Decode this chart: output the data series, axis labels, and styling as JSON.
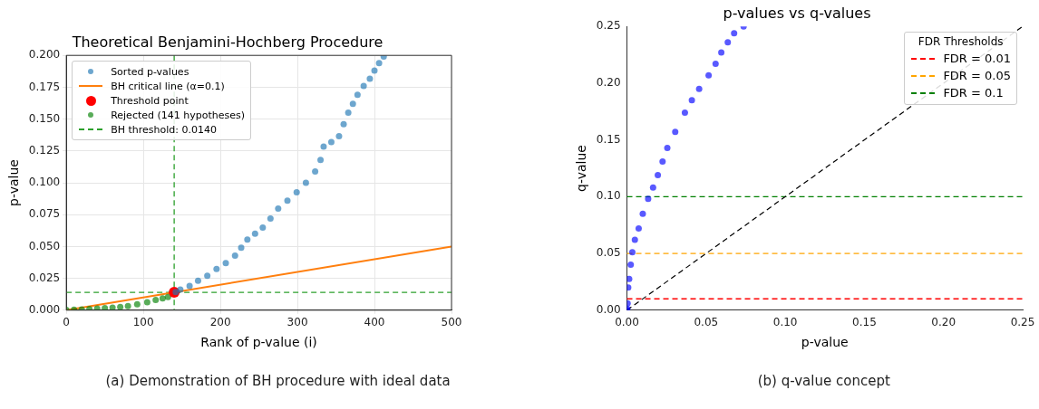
{
  "chart_data": [
    {
      "type": "scatter",
      "title": "Theoretical Benjamini-Hochberg Procedure",
      "xlabel": "Rank of p-value (i)",
      "ylabel": "p-value",
      "xlim": [
        0,
        500
      ],
      "ylim": [
        0,
        0.2
      ],
      "xticks": [
        0,
        100,
        200,
        300,
        400,
        500
      ],
      "yticks": [
        {
          "value": 0,
          "label": "0.000"
        },
        {
          "value": 0.025,
          "label": "0.025"
        },
        {
          "value": 0.05,
          "label": "0.050"
        },
        {
          "value": 0.075,
          "label": "0.075"
        },
        {
          "value": 0.1,
          "label": "0.100"
        },
        {
          "value": 0.125,
          "label": "0.125"
        },
        {
          "value": 0.15,
          "label": "0.150"
        },
        {
          "value": 0.175,
          "label": "0.175"
        },
        {
          "value": 0.2,
          "label": "0.200"
        }
      ],
      "grid": true,
      "legend": "top left",
      "annotations": [
        "(a) Demonstration of BH procedure with ideal data"
      ],
      "series": [
        {
          "name": "Sorted p-values",
          "marker": "circle",
          "color": "#1f77b4",
          "x": [
            142,
            148,
            160,
            171,
            183,
            195,
            207,
            219,
            227,
            235,
            245,
            255,
            265,
            275,
            287,
            299,
            311,
            323,
            330,
            334,
            344,
            354,
            360,
            366,
            372,
            378,
            386,
            394,
            400,
            406,
            412
          ],
          "values": [
            0.0142,
            0.0162,
            0.019,
            0.0231,
            0.027,
            0.0324,
            0.037,
            0.0428,
            0.049,
            0.0555,
            0.06,
            0.0648,
            0.072,
            0.0798,
            0.086,
            0.0925,
            0.1,
            0.1088,
            0.118,
            0.1284,
            0.132,
            0.1365,
            0.146,
            0.155,
            0.162,
            0.169,
            0.176,
            0.1816,
            0.188,
            0.194,
            0.199
          ]
        },
        {
          "name": "BH critical line (α=0.1)",
          "type": "line",
          "marker": "none",
          "line_style": "solid",
          "color": "#ff7f0e",
          "x": [
            0,
            500
          ],
          "values": [
            0,
            0.05
          ]
        },
        {
          "name": "Threshold point",
          "marker": "circle",
          "color": "#ff0000",
          "x": [
            140
          ],
          "values": [
            0.014
          ]
        },
        {
          "name": "Rejected (141 hypotheses)",
          "marker": "circle",
          "color": "#008000",
          "x": [
            0,
            10,
            20,
            30,
            40,
            50,
            60,
            70,
            80,
            92,
            105,
            116,
            125,
            132
          ],
          "values": [
            0.0002,
            0.0004,
            0.0006,
            0.0009,
            0.0012,
            0.0016,
            0.002,
            0.0026,
            0.0032,
            0.0046,
            0.0062,
            0.0081,
            0.0092,
            0.0104
          ]
        }
      ],
      "ref_lines": [
        {
          "axis": "y",
          "value": 0.014,
          "label": "BH threshold: 0.0140",
          "color": "#2ca02c",
          "line_style": "dashed"
        },
        {
          "axis": "x",
          "value": 140,
          "color": "#2ca02c",
          "line_style": "dashed"
        }
      ]
    },
    {
      "type": "scatter",
      "title": "p-values vs q-values",
      "xlabel": "p-value",
      "ylabel": "q-value",
      "xlim": [
        0,
        0.25
      ],
      "ylim": [
        0,
        0.25
      ],
      "xticks": [
        {
          "value": 0,
          "label": "0.00"
        },
        {
          "value": 0.05,
          "label": "0.05"
        },
        {
          "value": 0.1,
          "label": "0.10"
        },
        {
          "value": 0.15,
          "label": "0.15"
        },
        {
          "value": 0.2,
          "label": "0.20"
        },
        {
          "value": 0.25,
          "label": "0.25"
        }
      ],
      "yticks": [
        {
          "value": 0,
          "label": "0.00"
        },
        {
          "value": 0.05,
          "label": "0.05"
        },
        {
          "value": 0.1,
          "label": "0.10"
        },
        {
          "value": 0.15,
          "label": "0.15"
        },
        {
          "value": 0.2,
          "label": "0.20"
        },
        {
          "value": 0.25,
          "label": "0.25"
        }
      ],
      "grid": false,
      "legend": "top right",
      "legend_title": "FDR Thresholds",
      "annotations": [
        "(b) q-value concept"
      ],
      "series": [
        {
          "marker": "circle",
          "color": "#0000ff",
          "x": [
            0,
            0.0002,
            0.0004,
            0.0008,
            0.0014,
            0.0024,
            0.0034,
            0.005,
            0.0074,
            0.01,
            0.0134,
            0.0165,
            0.0195,
            0.0225,
            0.0255,
            0.0305,
            0.0366,
            0.041,
            0.0456,
            0.0516,
            0.056,
            0.0596,
            0.0637,
            0.0677,
            0.0737
          ],
          "values": [
            0,
            0.0013,
            0.006,
            0.02,
            0.0275,
            0.04,
            0.051,
            0.062,
            0.072,
            0.085,
            0.098,
            0.108,
            0.119,
            0.131,
            0.143,
            0.157,
            0.174,
            0.185,
            0.195,
            0.207,
            0.217,
            0.227,
            0.236,
            0.244,
            0.25
          ]
        },
        {
          "type": "line",
          "marker": "none",
          "line_style": "dashed",
          "color": "#000000",
          "x": [
            0,
            0.25
          ],
          "values": [
            0,
            0.25
          ]
        }
      ],
      "ref_lines": [
        {
          "axis": "y",
          "value": 0.01,
          "label": "FDR = 0.01",
          "color": "#ff0000",
          "line_style": "dashed"
        },
        {
          "axis": "y",
          "value": 0.05,
          "label": "FDR = 0.05",
          "color": "#ffa500",
          "line_style": "dashed"
        },
        {
          "axis": "y",
          "value": 0.1,
          "label": "FDR = 0.1",
          "color": "#008000",
          "line_style": "dashed"
        }
      ]
    }
  ]
}
